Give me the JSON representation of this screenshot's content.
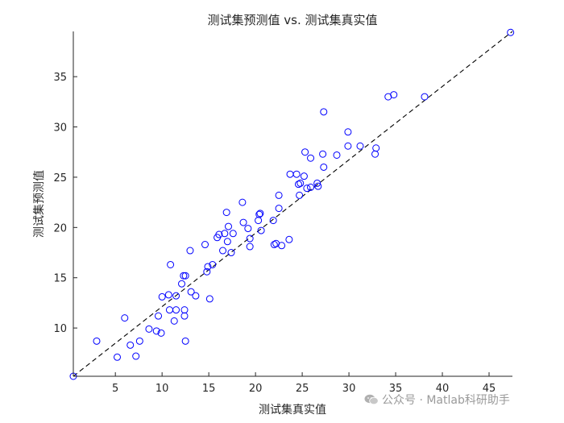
{
  "chart_data": {
    "type": "scatter",
    "title": "测试集预测值 vs. 测试集真实值",
    "xlabel": "测试集真实值",
    "ylabel": "测试集预测值",
    "xlim": [
      0.5,
      47.5
    ],
    "ylim": [
      5.2,
      39.5
    ],
    "xticks": [
      5,
      10,
      15,
      20,
      25,
      30,
      35,
      40,
      45
    ],
    "yticks": [
      10,
      15,
      20,
      25,
      30,
      35
    ],
    "grid": false,
    "marker_color": "#0000ff",
    "reference_line": {
      "style": "dashed",
      "color": "#000000",
      "from": [
        0.5,
        5.2
      ],
      "to": [
        47.5,
        39.5
      ]
    },
    "points": [
      [
        0.5,
        5.2
      ],
      [
        3.0,
        8.7
      ],
      [
        5.2,
        7.1
      ],
      [
        6.0,
        11.0
      ],
      [
        6.6,
        8.3
      ],
      [
        7.2,
        7.2
      ],
      [
        7.6,
        8.7
      ],
      [
        8.6,
        9.9
      ],
      [
        9.4,
        9.7
      ],
      [
        9.6,
        11.2
      ],
      [
        9.9,
        9.5
      ],
      [
        10.0,
        13.1
      ],
      [
        10.7,
        13.3
      ],
      [
        10.8,
        11.8
      ],
      [
        10.9,
        16.3
      ],
      [
        11.3,
        10.7
      ],
      [
        11.5,
        11.8
      ],
      [
        11.5,
        13.2
      ],
      [
        12.1,
        14.4
      ],
      [
        12.3,
        15.2
      ],
      [
        12.4,
        11.2
      ],
      [
        12.4,
        11.8
      ],
      [
        12.5,
        8.7
      ],
      [
        12.5,
        15.2
      ],
      [
        13.0,
        17.7
      ],
      [
        13.1,
        13.6
      ],
      [
        13.6,
        13.2
      ],
      [
        14.6,
        18.3
      ],
      [
        14.8,
        15.6
      ],
      [
        14.9,
        16.1
      ],
      [
        15.1,
        12.9
      ],
      [
        15.4,
        16.3
      ],
      [
        15.9,
        19.0
      ],
      [
        16.1,
        19.3
      ],
      [
        16.5,
        17.7
      ],
      [
        16.7,
        19.4
      ],
      [
        16.9,
        21.5
      ],
      [
        17.0,
        18.6
      ],
      [
        17.1,
        20.1
      ],
      [
        17.4,
        17.5
      ],
      [
        17.6,
        19.4
      ],
      [
        18.6,
        22.5
      ],
      [
        18.7,
        20.5
      ],
      [
        19.2,
        19.9
      ],
      [
        19.4,
        18.1
      ],
      [
        19.4,
        18.9
      ],
      [
        20.3,
        20.7
      ],
      [
        20.4,
        21.3
      ],
      [
        20.5,
        21.4
      ],
      [
        20.6,
        19.7
      ],
      [
        21.9,
        20.7
      ],
      [
        22.0,
        18.3
      ],
      [
        22.2,
        18.4
      ],
      [
        22.5,
        21.9
      ],
      [
        22.5,
        23.2
      ],
      [
        22.8,
        18.2
      ],
      [
        23.6,
        18.8
      ],
      [
        23.7,
        25.3
      ],
      [
        24.4,
        25.3
      ],
      [
        24.6,
        24.3
      ],
      [
        24.7,
        23.2
      ],
      [
        24.8,
        24.4
      ],
      [
        25.2,
        25.1
      ],
      [
        25.3,
        27.5
      ],
      [
        25.5,
        23.9
      ],
      [
        25.9,
        24.0
      ],
      [
        25.9,
        26.9
      ],
      [
        26.6,
        24.4
      ],
      [
        26.7,
        24.1
      ],
      [
        27.2,
        27.3
      ],
      [
        27.3,
        26.0
      ],
      [
        27.3,
        31.5
      ],
      [
        28.7,
        27.2
      ],
      [
        29.9,
        28.1
      ],
      [
        29.9,
        29.5
      ],
      [
        31.2,
        28.1
      ],
      [
        32.8,
        27.3
      ],
      [
        32.9,
        27.9
      ],
      [
        34.2,
        33.0
      ],
      [
        34.8,
        33.2
      ],
      [
        38.1,
        33.0
      ],
      [
        47.3,
        39.4
      ]
    ]
  },
  "watermark": {
    "text": "公众号 · Matlab科研助手",
    "icon": "wechat-icon"
  }
}
